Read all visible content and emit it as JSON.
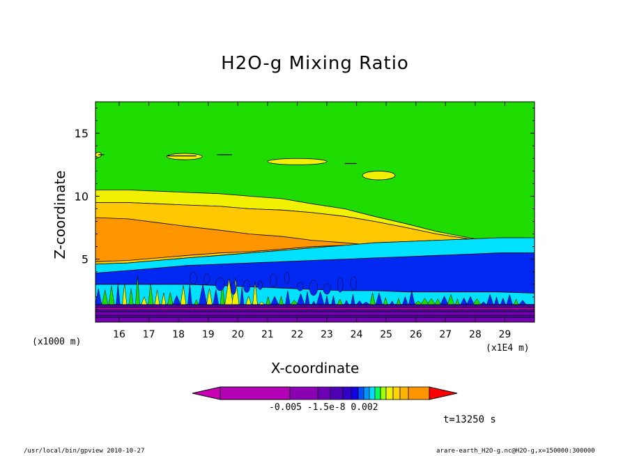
{
  "chart_data": {
    "type": "heatmap",
    "title": "H2O-g Mixing Ratio",
    "xlabel": "X-coordinate",
    "ylabel": "Z-coordinate",
    "x_unit_label": "(x1000 m)",
    "x_scale_label": "(x1E4 m)",
    "xlim": [
      15.2,
      30.0
    ],
    "ylim": [
      0,
      17.5
    ],
    "x_ticks": [
      16,
      17,
      18,
      19,
      20,
      21,
      22,
      23,
      24,
      25,
      26,
      27,
      28,
      29
    ],
    "y_ticks": [
      5,
      10,
      15
    ],
    "colorbar_labels": "-0.005 -1.5e-8  0.002",
    "colors": {
      "background": "#1fdc00",
      "yellow": "#f0f000",
      "light_orange": "#ffc800",
      "orange": "#ff9600",
      "cyan": "#00e1ff",
      "blue": "#0028f0",
      "dark_purple": "#4b0096",
      "purple": "#7800b4",
      "magenta": "#c800b4"
    },
    "layers": [
      {
        "name": "yellow-band",
        "z_top": [
          10.5,
          10.5,
          10.4,
          10.3,
          10.2,
          10.0,
          9.8,
          9.4,
          9.0,
          8.4,
          7.8,
          7.2,
          6.7,
          6.3,
          6.1
        ],
        "z_bottom": [
          9.5,
          9.5,
          9.4,
          9.3,
          9.2,
          9.0,
          8.9,
          8.7,
          8.4,
          8.0,
          7.5,
          7.0,
          6.6,
          6.3,
          6.1
        ]
      },
      {
        "name": "light-orange-band",
        "z_top": [
          9.5,
          9.5,
          9.4,
          9.3,
          9.2,
          9.0,
          8.9,
          8.7,
          8.4,
          8.0,
          7.5,
          7.0,
          6.6,
          6.3,
          6.1
        ],
        "z_bottom": [
          4.6,
          4.7,
          4.9,
          5.1,
          5.3,
          5.5,
          5.7,
          5.9,
          6.1,
          6.3,
          6.4,
          6.5,
          6.5,
          6.3,
          6.1
        ]
      },
      {
        "name": "orange-band",
        "z_top": [
          8.3,
          8.2,
          7.9,
          7.6,
          7.3,
          7.0,
          6.8,
          6.5,
          6.3,
          6.1,
          6.0,
          6.0,
          6.0,
          6.0,
          6.0
        ],
        "z_bottom": [
          4.8,
          4.9,
          5.1,
          5.3,
          5.5,
          5.6,
          5.8,
          6.0,
          6.1,
          6.1,
          6.0,
          6.0,
          6.0,
          6.0,
          6.0
        ]
      },
      {
        "name": "cyan-band",
        "z_top": [
          4.6,
          4.7,
          4.9,
          5.1,
          5.3,
          5.5,
          5.7,
          5.9,
          6.1,
          6.3,
          6.4,
          6.5,
          6.6,
          6.7,
          6.7
        ],
        "z_bottom": [
          1.3,
          1.3,
          1.3,
          1.3,
          1.3,
          1.3,
          1.3,
          1.3,
          1.3,
          1.3,
          1.3,
          1.3,
          1.3,
          1.3,
          1.3
        ]
      },
      {
        "name": "blue-band",
        "z_top": [
          3.9,
          4.1,
          4.3,
          4.5,
          4.6,
          4.7,
          4.8,
          4.9,
          5.0,
          5.1,
          5.2,
          5.3,
          5.4,
          5.5,
          5.5
        ],
        "z_bottom": [
          3.0,
          3.0,
          3.0,
          3.0,
          2.9,
          2.8,
          2.7,
          2.6,
          2.5,
          2.5,
          2.4,
          2.4,
          2.4,
          2.4,
          2.3
        ]
      },
      {
        "name": "purple-band",
        "z_top": [
          1.4,
          1.4,
          1.4,
          1.4,
          1.4,
          1.4,
          1.4,
          1.4,
          1.4,
          1.4,
          1.4,
          1.4,
          1.4,
          1.4,
          1.4
        ],
        "z_bottom": [
          0,
          0,
          0,
          0,
          0,
          0,
          0,
          0,
          0,
          0,
          0,
          0,
          0,
          0,
          0
        ]
      }
    ],
    "layer_x": [
      15.2,
      16.3,
      17.3,
      18.3,
      19.4,
      20.4,
      21.5,
      22.5,
      23.6,
      24.6,
      25.7,
      26.7,
      27.8,
      28.8,
      30.0
    ],
    "upper_patches": [
      {
        "color": "yellow",
        "x": [
          21.0,
          23.0
        ],
        "z": [
          12.5,
          13.0
        ]
      },
      {
        "color": "yellow",
        "x": [
          24.2,
          25.3
        ],
        "z": [
          11.3,
          12.0
        ]
      },
      {
        "color": "yellow",
        "x": [
          17.6,
          18.8
        ],
        "z": [
          12.9,
          13.4
        ]
      },
      {
        "color": "yellow",
        "x": [
          15.2,
          15.4
        ],
        "z": [
          13.1,
          13.5
        ]
      }
    ]
  },
  "annotations": {
    "time": "t=13250 s"
  },
  "footer": {
    "left": "/usr/local/bin/gpview  2010-10-27",
    "right": "arare-earth_H2O-g.nc@H2O-g,x=150000:300000"
  }
}
